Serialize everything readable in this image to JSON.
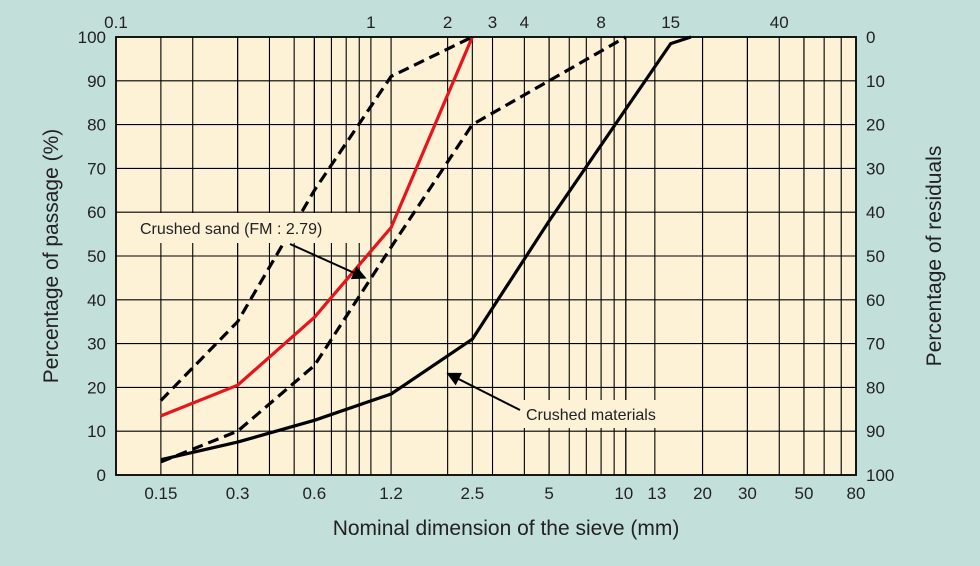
{
  "chart_data": {
    "type": "line",
    "xlabel": "Nominal dimension of the sieve (mm)",
    "ylabel": "Percentage of passage (%)",
    "y2label": "Percentage of residuals",
    "x_scale": "log",
    "xlim": [
      0.1,
      80
    ],
    "ylim": [
      0,
      100
    ],
    "grid": true,
    "x_ticks_bottom": [
      {
        "value": 0.15,
        "label": "0.15"
      },
      {
        "value": 0.3,
        "label": "0.3"
      },
      {
        "value": 0.6,
        "label": "0.6"
      },
      {
        "value": 1.2,
        "label": "1.2"
      },
      {
        "value": 2.5,
        "label": "2.5"
      },
      {
        "value": 5,
        "label": "5"
      },
      {
        "value": 10,
        "label": "10"
      },
      {
        "value": 13,
        "label": "13"
      },
      {
        "value": 20,
        "label": "20"
      },
      {
        "value": 30,
        "label": "30"
      },
      {
        "value": 50,
        "label": "50"
      },
      {
        "value": 80,
        "label": "80"
      }
    ],
    "x_ticks_top": [
      {
        "value": 0.1,
        "label": "0.1"
      },
      {
        "value": 1,
        "label": "1"
      },
      {
        "value": 2,
        "label": "2"
      },
      {
        "value": 3,
        "label": "3"
      },
      {
        "value": 4,
        "label": "4"
      },
      {
        "value": 8,
        "label": "8"
      },
      {
        "value": 15,
        "label": "15"
      },
      {
        "value": 40,
        "label": "40"
      }
    ],
    "y_ticks_left": [
      "0",
      "10",
      "20",
      "30",
      "40",
      "50",
      "60",
      "70",
      "80",
      "90",
      "100"
    ],
    "y_ticks_right": [
      "100",
      "90",
      "80",
      "70",
      "60",
      "50",
      "40",
      "30",
      "20",
      "10",
      "0"
    ],
    "series": [
      {
        "name": "Crushed sand (FM : 2.79)",
        "color": "#e8141c",
        "style": "solid",
        "points": [
          [
            0.15,
            13.5
          ],
          [
            0.3,
            20.5
          ],
          [
            0.6,
            36
          ],
          [
            1.2,
            56.5
          ],
          [
            2.5,
            100
          ]
        ]
      },
      {
        "color": "#000000",
        "style": "dashed",
        "points": [
          [
            0.15,
            17
          ],
          [
            0.3,
            35
          ],
          [
            0.6,
            65
          ],
          [
            1.2,
            91
          ],
          [
            2.5,
            100
          ]
        ]
      },
      {
        "color": "#000000",
        "style": "dashed",
        "points": [
          [
            0.15,
            3
          ],
          [
            0.3,
            10
          ],
          [
            0.6,
            25
          ],
          [
            1.2,
            52
          ],
          [
            2.5,
            80
          ],
          [
            10,
            100
          ]
        ]
      },
      {
        "name": "Crushed materials",
        "color": "#000000",
        "style": "solid",
        "points": [
          [
            0.15,
            3.5
          ],
          [
            0.3,
            7.5
          ],
          [
            0.6,
            12.5
          ],
          [
            1.2,
            18.5
          ],
          [
            2.5,
            31
          ],
          [
            5,
            58
          ],
          [
            15,
            98.5
          ],
          [
            18,
            100
          ]
        ]
      }
    ],
    "annotations": [
      {
        "text": "Crushed sand (FM : 2.79)",
        "points_to": [
          0.95,
          45
        ]
      },
      {
        "text": "Crushed materials",
        "points_to": [
          2.0,
          25
        ]
      }
    ]
  }
}
